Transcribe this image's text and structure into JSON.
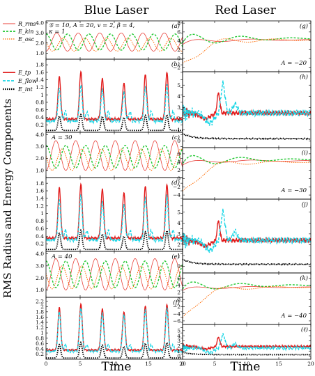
{
  "headers": {
    "left": "Blue Laser",
    "right": "Red Laser"
  },
  "ylabel": "RMS Radius and Energy Components",
  "xlabel": "Time",
  "legend_top": {
    "params_line1": "𝒢 = 10, A = 20, v = 2, β = 4,",
    "params_line2": "κ = 1",
    "entries": [
      "R_rms",
      "E_kin",
      "E_osc"
    ]
  },
  "legend_bottom": {
    "entries": [
      "E_tp",
      "E_flow",
      "E_int"
    ]
  },
  "colors": {
    "rms": "#e8403a",
    "kin": "#22c832",
    "osc": "#ff6a00",
    "tp": "#e11a1a",
    "flow": "#19d6e6",
    "int": "#000000"
  },
  "chart_data": [
    {
      "id": "a",
      "label": "(a)",
      "type": "line",
      "side": "left",
      "kind": "upper",
      "xlim": [
        0,
        20
      ],
      "ylim": [
        0.4,
        4.2
      ],
      "yticks": [
        1.0,
        2.0,
        3.0,
        4.0
      ],
      "ytick_labels": [
        "1.0",
        "2.0",
        "3.0",
        "4.0"
      ],
      "annotation": "",
      "series": [
        {
          "key": "rms",
          "amplitude_range": [
            1.2,
            3.0
          ],
          "period": 3.15
        },
        {
          "key": "kin",
          "range": [
            1.3,
            2.9
          ]
        },
        {
          "key": "osc",
          "range": [
            1.2,
            2.5
          ]
        }
      ]
    },
    {
      "id": "b",
      "label": "(b)",
      "type": "line",
      "side": "left",
      "kind": "lower",
      "xlim": [
        0,
        20
      ],
      "ylim": [
        0,
        1.95
      ],
      "yticks": [
        0.2,
        0.4,
        0.6,
        0.8,
        1,
        1.2,
        1.4,
        1.6,
        1.8
      ],
      "ytick_labels": [
        "0.2",
        "0.4",
        "0.6",
        "0.8",
        "1",
        "1.2",
        "1.4",
        "1.6",
        "1.8"
      ],
      "annotation": "",
      "series": [
        {
          "key": "tp",
          "peak_range": [
            1.2,
            1.6
          ]
        },
        {
          "key": "flow",
          "peak_range": [
            1.0,
            1.3
          ]
        },
        {
          "key": "int",
          "peak_range": [
            0.4,
            0.5
          ]
        }
      ]
    },
    {
      "id": "c",
      "label": "(c)",
      "type": "line",
      "side": "left",
      "kind": "upper",
      "xlim": [
        0,
        20
      ],
      "ylim": [
        0.4,
        4.2
      ],
      "yticks": [
        1.0,
        2.0,
        3.0,
        4.0
      ],
      "ytick_labels": [
        "1.0",
        "2.0",
        "3.0",
        "4.0"
      ],
      "annotation": "A = 30",
      "series": [
        {
          "key": "rms",
          "amplitude_range": [
            1.0,
            3.5
          ],
          "period": 2.9
        },
        {
          "key": "kin",
          "range": [
            1.2,
            3.1
          ]
        },
        {
          "key": "osc",
          "range": [
            1.0,
            2.8
          ]
        }
      ]
    },
    {
      "id": "d",
      "label": "(d)",
      "type": "line",
      "side": "left",
      "kind": "lower",
      "xlim": [
        0,
        20
      ],
      "ylim": [
        0,
        1.95
      ],
      "yticks": [
        0.2,
        0.4,
        0.6,
        0.8,
        1,
        1.2,
        1.4,
        1.6,
        1.8
      ],
      "ytick_labels": [
        "0.2",
        "0.4",
        "0.6",
        "0.8",
        "1",
        "1.2",
        "1.4",
        "1.6",
        "1.8"
      ],
      "annotation": "",
      "series": [
        {
          "key": "tp",
          "peak_range": [
            1.5,
            1.8
          ]
        },
        {
          "key": "flow",
          "peak_range": [
            1.2,
            1.6
          ]
        },
        {
          "key": "int",
          "peak_range": [
            0.4,
            0.6
          ]
        }
      ]
    },
    {
      "id": "e",
      "label": "(e)",
      "type": "line",
      "side": "left",
      "kind": "upper",
      "xlim": [
        0,
        20
      ],
      "ylim": [
        0.4,
        4.2
      ],
      "yticks": [
        1.0,
        2.0,
        3.0,
        4.0
      ],
      "ytick_labels": [
        "1.0",
        "2.0",
        "3.0",
        "4.0"
      ],
      "annotation": "A = 40",
      "series": [
        {
          "key": "rms",
          "amplitude_range": [
            1.0,
            3.6
          ],
          "period": 2.9
        },
        {
          "key": "kin",
          "range": [
            1.2,
            3.4
          ]
        },
        {
          "key": "osc",
          "range": [
            1.1,
            3.0
          ]
        }
      ]
    },
    {
      "id": "f",
      "label": "(f)",
      "type": "line",
      "side": "left",
      "kind": "lower",
      "xlim": [
        0,
        20
      ],
      "ylim": [
        0,
        2.35
      ],
      "yticks": [
        0.2,
        0.4,
        0.6,
        0.8,
        1,
        1.2,
        1.4,
        1.6,
        1.8,
        2,
        2.2
      ],
      "ytick_labels": [
        "0.2",
        "0.4",
        "0.6",
        "0.8",
        "1",
        "1.2",
        "1.4",
        "1.6",
        "1.8",
        "2",
        "2.2"
      ],
      "annotation": "",
      "series": [
        {
          "key": "tp",
          "peak_range": [
            1.8,
            2.2
          ]
        },
        {
          "key": "flow",
          "peak_range": [
            1.8,
            2.2
          ]
        },
        {
          "key": "int",
          "peak_range": [
            0.5,
            0.7
          ]
        }
      ]
    },
    {
      "id": "g",
      "label": "(g)",
      "type": "line",
      "side": "right",
      "kind": "upper",
      "xlim": [
        0,
        20
      ],
      "ylim": [
        -3,
        8.5
      ],
      "yticks": [
        -2,
        0,
        2,
        4,
        6,
        8
      ],
      "ytick_labels": [
        "−2",
        "0",
        "2",
        "4",
        "6",
        "8"
      ],
      "annotation": "A = −20",
      "series": [
        {
          "key": "rms",
          "settles_to": 4.2
        },
        {
          "key": "kin",
          "settles_to": 4.5
        },
        {
          "key": "osc",
          "start": -2,
          "settles_to": 4.2
        }
      ]
    },
    {
      "id": "h",
      "label": "(h)",
      "type": "line",
      "side": "right",
      "kind": "lower",
      "xlim": [
        0,
        20
      ],
      "ylim": [
        -0.6,
        6.2
      ],
      "yticks": [
        0,
        1,
        2,
        3,
        4,
        5
      ],
      "ytick_labels": [
        "0",
        "1",
        "2",
        "3",
        "4",
        "5"
      ],
      "annotation": "",
      "series": [
        {
          "key": "tp",
          "level": 2.5
        },
        {
          "key": "flow",
          "level": 2.5
        },
        {
          "key": "int",
          "level": 0.2
        }
      ]
    },
    {
      "id": "i",
      "label": "(i)",
      "type": "line",
      "side": "right",
      "kind": "upper",
      "xlim": [
        0,
        20
      ],
      "ylim": [
        -5,
        7.5
      ],
      "yticks": [
        -4,
        -2,
        0,
        2,
        4,
        6
      ],
      "ytick_labels": [
        "−4",
        "−2",
        "0",
        "2",
        "4",
        "6"
      ],
      "annotation": "A = −30",
      "series": [
        {
          "key": "rms",
          "settles_to": 4.3
        },
        {
          "key": "kin",
          "settles_to": 4.6
        },
        {
          "key": "osc",
          "start": -4,
          "settles_to": 4.0
        }
      ]
    },
    {
      "id": "j",
      "label": "(j)",
      "type": "line",
      "side": "right",
      "kind": "lower",
      "xlim": [
        0,
        20
      ],
      "ylim": [
        -0.6,
        6.2
      ],
      "yticks": [
        0,
        1,
        2,
        3,
        4,
        5
      ],
      "ytick_labels": [
        "0",
        "1",
        "2",
        "3",
        "4",
        "5"
      ],
      "annotation": "",
      "series": [
        {
          "key": "tp",
          "level": 2.4
        },
        {
          "key": "flow",
          "level": 2.4
        },
        {
          "key": "int",
          "level": 0.2
        }
      ]
    },
    {
      "id": "k",
      "label": "(k)",
      "type": "line",
      "side": "right",
      "kind": "upper",
      "xlim": [
        0,
        20
      ],
      "ylim": [
        -7,
        7.5
      ],
      "yticks": [
        -6,
        -4,
        -2,
        0,
        2,
        4,
        6
      ],
      "ytick_labels": [
        "−6",
        "−4",
        "−2",
        "0",
        "2",
        "4",
        "6"
      ],
      "annotation": "A = −40",
      "series": [
        {
          "key": "rms",
          "settles_to": 3.5
        },
        {
          "key": "kin",
          "settles_to": 4.0
        },
        {
          "key": "osc",
          "start": -6,
          "settles_to": 3.5
        }
      ]
    },
    {
      "id": "l",
      "label": "(ℓ)",
      "type": "line",
      "side": "right",
      "kind": "lower",
      "xlim": [
        0,
        20
      ],
      "ylim": [
        -0.6,
        6.2
      ],
      "yticks": [
        0,
        1,
        2,
        3,
        4,
        5
      ],
      "ytick_labels": [
        "0",
        "1",
        "2",
        "3",
        "4",
        "5"
      ],
      "annotation": "",
      "series": [
        {
          "key": "tp",
          "level": 1.9
        },
        {
          "key": "flow",
          "level": 1.6
        },
        {
          "key": "int",
          "level": 0.3
        }
      ]
    }
  ],
  "xticks": [
    0,
    5,
    10,
    15,
    20
  ],
  "xtick_labels": [
    "0",
    "5",
    "10",
    "15",
    "20"
  ]
}
